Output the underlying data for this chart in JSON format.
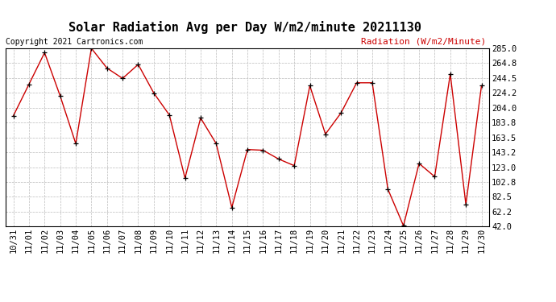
{
  "title": "Solar Radiation Avg per Day W/m2/minute 20211130",
  "copyright_text": "Copyright 2021 Cartronics.com",
  "legend_label": "Radiation (W/m2/Minute)",
  "dates": [
    "10/31",
    "11/01",
    "11/02",
    "11/03",
    "11/04",
    "11/05",
    "11/06",
    "11/07",
    "11/08",
    "11/09",
    "11/10",
    "11/11",
    "11/12",
    "11/13",
    "11/14",
    "11/15",
    "11/16",
    "11/17",
    "11/18",
    "11/19",
    "11/20",
    "11/21",
    "11/22",
    "11/23",
    "11/24",
    "11/25",
    "11/26",
    "11/27",
    "11/28",
    "11/29",
    "11/30"
  ],
  "values": [
    193,
    236,
    279,
    220,
    155,
    285,
    258,
    244,
    263,
    224,
    194,
    108,
    190,
    155,
    68,
    147,
    146,
    134,
    125,
    234,
    168,
    197,
    238,
    238,
    93,
    43,
    128,
    110,
    250,
    72,
    234
  ],
  "line_color": "#cc0000",
  "marker_color": "#000000",
  "background_color": "#ffffff",
  "grid_color": "#bbbbbb",
  "title_fontsize": 11,
  "tick_fontsize": 7.5,
  "copyright_fontsize": 7,
  "legend_fontsize": 8,
  "ylim": [
    42.0,
    285.0
  ],
  "yticks": [
    42.0,
    62.2,
    82.5,
    102.8,
    123.0,
    143.2,
    163.5,
    183.8,
    204.0,
    224.2,
    244.5,
    264.8,
    285.0
  ]
}
